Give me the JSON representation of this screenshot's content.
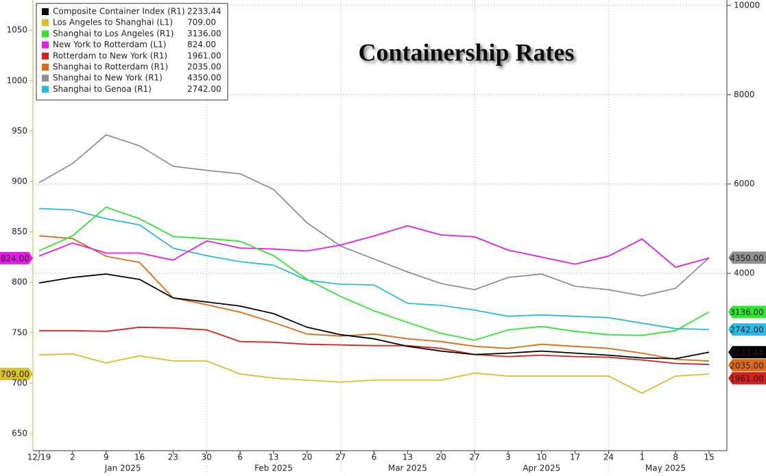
{
  "chart_data": {
    "type": "line",
    "title": "Containership Rates",
    "categories": [
      "12/19",
      "2",
      "9",
      "16",
      "23",
      "30",
      "6",
      "13",
      "20",
      "27",
      "6",
      "13",
      "20",
      "27",
      "3",
      "10",
      "17",
      "24",
      "1",
      "8",
      "15"
    ],
    "month_labels": [
      "Jan 2025",
      "Feb 2025",
      "Mar 2025",
      "Apr 2025",
      "May 2025"
    ],
    "ylim": [
      633,
      1080
    ],
    "yticks": [
      650,
      700,
      750,
      800,
      850,
      900,
      950,
      1000,
      1050
    ],
    "y2lim": [
      30,
      10120
    ],
    "y2ticks": [
      4000,
      6000,
      8000,
      10000
    ],
    "grid": true,
    "legend": "upper left",
    "series": [
      {
        "name": "Composite Container Index (R1)",
        "color": "#000000",
        "axis": "y2",
        "last_label": "2233.44",
        "values": [
          3786,
          3908,
          3985,
          3863,
          3450,
          3359,
          3267,
          3099,
          2794,
          2626,
          2534,
          2366,
          2259,
          2183,
          2213,
          2259,
          2213,
          2168,
          2107,
          2091,
          2233.44
        ]
      },
      {
        "name": "Los Angeles to Shanghai (L1)",
        "color": "#d9c02a",
        "axis": "y",
        "last_label": "709.00",
        "values": [
          728,
          729,
          720,
          727,
          722,
          722,
          709,
          705,
          703,
          701,
          703,
          703,
          703,
          710,
          707,
          707,
          707,
          707,
          690,
          707,
          709
        ]
      },
      {
        "name": "Shanghai to Los Angeles (R1)",
        "color": "#2ee62e",
        "axis": "y2",
        "last_label": "3136.00",
        "values": [
          4504,
          4840,
          5481,
          5222,
          4825,
          4779,
          4718,
          4397,
          3863,
          3481,
          3160,
          2901,
          2656,
          2504,
          2733,
          2809,
          2702,
          2626,
          2611,
          2718,
          3136
        ]
      },
      {
        "name": "New York to Rotterdam (L1)",
        "color": "#e619e6",
        "axis": "y",
        "last_label": "824.00",
        "values": [
          826,
          839,
          829,
          829,
          822,
          841,
          834,
          833,
          831,
          837,
          846,
          856,
          847,
          845,
          832,
          825,
          818,
          826,
          843,
          815,
          824
        ]
      },
      {
        "name": "Rotterdam to New York (R1)",
        "color": "#d81e1e",
        "axis": "y2",
        "last_label": "1961.00",
        "values": [
          2717,
          2717,
          2702,
          2794,
          2778,
          2733,
          2473,
          2458,
          2412,
          2397,
          2381,
          2381,
          2320,
          2183,
          2137,
          2168,
          2137,
          2122,
          2061,
          1984,
          1961
        ]
      },
      {
        "name": "Shanghai to Rotterdam (R1)",
        "color": "#e06a14",
        "axis": "y2",
        "last_label": "2035.00",
        "values": [
          4840,
          4779,
          4382,
          4244,
          3450,
          3297,
          3130,
          2901,
          2641,
          2595,
          2641,
          2534,
          2473,
          2366,
          2320,
          2412,
          2366,
          2320,
          2213,
          2076,
          2035
        ]
      },
      {
        "name": "Shanghai to New York (R1)",
        "color": "#909090",
        "axis": "y2",
        "last_label": "4350.00",
        "values": [
          6031,
          6458,
          7100,
          6855,
          6397,
          6306,
          6229,
          5878,
          5130,
          4611,
          4321,
          4031,
          3771,
          3634,
          3908,
          3985,
          3710,
          3634,
          3496,
          3664,
          4350
        ]
      },
      {
        "name": "Shanghai to Genoa (R1)",
        "color": "#2ab8e6",
        "axis": "y2",
        "last_label": "2742.00",
        "values": [
          5451,
          5420,
          5222,
          5084,
          4565,
          4397,
          4260,
          4183,
          3847,
          3756,
          3740,
          3328,
          3282,
          3175,
          3038,
          3069,
          3038,
          3008,
          2886,
          2763,
          2742
        ]
      }
    ]
  }
}
